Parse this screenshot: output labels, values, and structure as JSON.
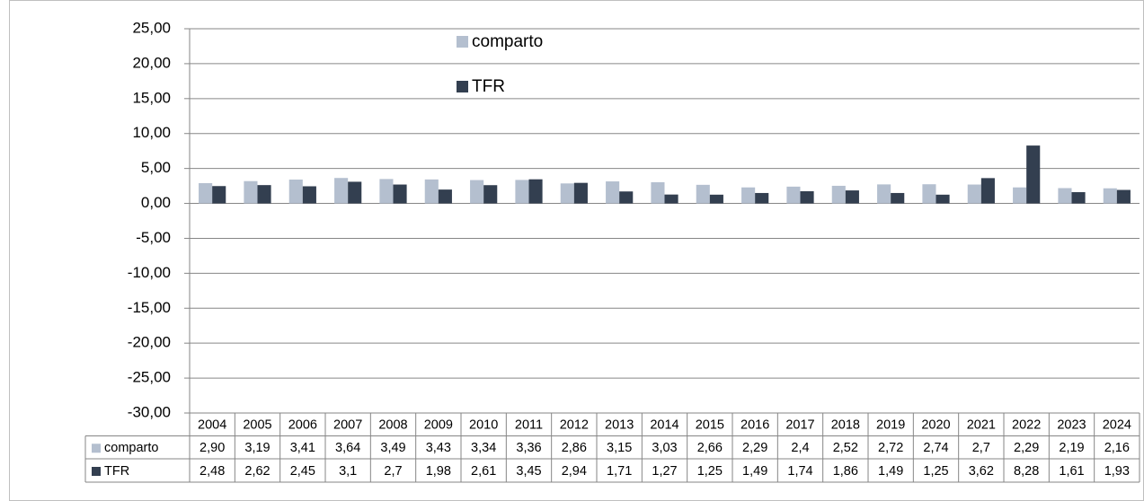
{
  "chart_data": {
    "type": "bar",
    "categories": [
      "2004",
      "2005",
      "2006",
      "2007",
      "2008",
      "2009",
      "2010",
      "2011",
      "2012",
      "2013",
      "2014",
      "2015",
      "2016",
      "2017",
      "2018",
      "2019",
      "2020",
      "2021",
      "2022",
      "2023",
      "2024"
    ],
    "series": [
      {
        "name": "comparto",
        "color": "#b4bfcf",
        "values": [
          2.9,
          3.19,
          3.41,
          3.64,
          3.49,
          3.43,
          3.34,
          3.36,
          2.86,
          3.15,
          3.03,
          2.66,
          2.29,
          2.4,
          2.52,
          2.72,
          2.74,
          2.7,
          2.29,
          2.19,
          2.16
        ],
        "value_labels": [
          "2,90",
          "3,19",
          "3,41",
          "3,64",
          "3,49",
          "3,43",
          "3,34",
          "3,36",
          "2,86",
          "3,15",
          "3,03",
          "2,66",
          "2,29",
          "2,4",
          "2,52",
          "2,72",
          "2,74",
          "2,7",
          "2,29",
          "2,19",
          "2,16"
        ]
      },
      {
        "name": "TFR",
        "color": "#333f50",
        "values": [
          2.48,
          2.62,
          2.45,
          3.1,
          2.7,
          1.98,
          2.61,
          3.45,
          2.94,
          1.71,
          1.27,
          1.25,
          1.49,
          1.74,
          1.86,
          1.49,
          1.25,
          3.62,
          8.28,
          1.61,
          1.93
        ],
        "value_labels": [
          "2,48",
          "2,62",
          "2,45",
          "3,1",
          "2,7",
          "1,98",
          "2,61",
          "3,45",
          "2,94",
          "1,71",
          "1,27",
          "1,25",
          "1,49",
          "1,74",
          "1,86",
          "1,49",
          "1,25",
          "3,62",
          "8,28",
          "1,61",
          "1,93"
        ]
      }
    ],
    "ylim": [
      -30,
      25
    ],
    "yticks": [
      {
        "value": -30,
        "label": "-30,00"
      },
      {
        "value": -25,
        "label": "-25,00"
      },
      {
        "value": -20,
        "label": "-20,00"
      },
      {
        "value": -15,
        "label": "-15,00"
      },
      {
        "value": -10,
        "label": "-10,00"
      },
      {
        "value": -5,
        "label": "-5,00"
      },
      {
        "value": 0,
        "label": "0,00"
      },
      {
        "value": 5,
        "label": "5,00"
      },
      {
        "value": 10,
        "label": "10,00"
      },
      {
        "value": 15,
        "label": "15,00"
      },
      {
        "value": 20,
        "label": "20,00"
      },
      {
        "value": 25,
        "label": "25,00"
      }
    ],
    "grid": true,
    "legend": "top",
    "data_table": true
  }
}
